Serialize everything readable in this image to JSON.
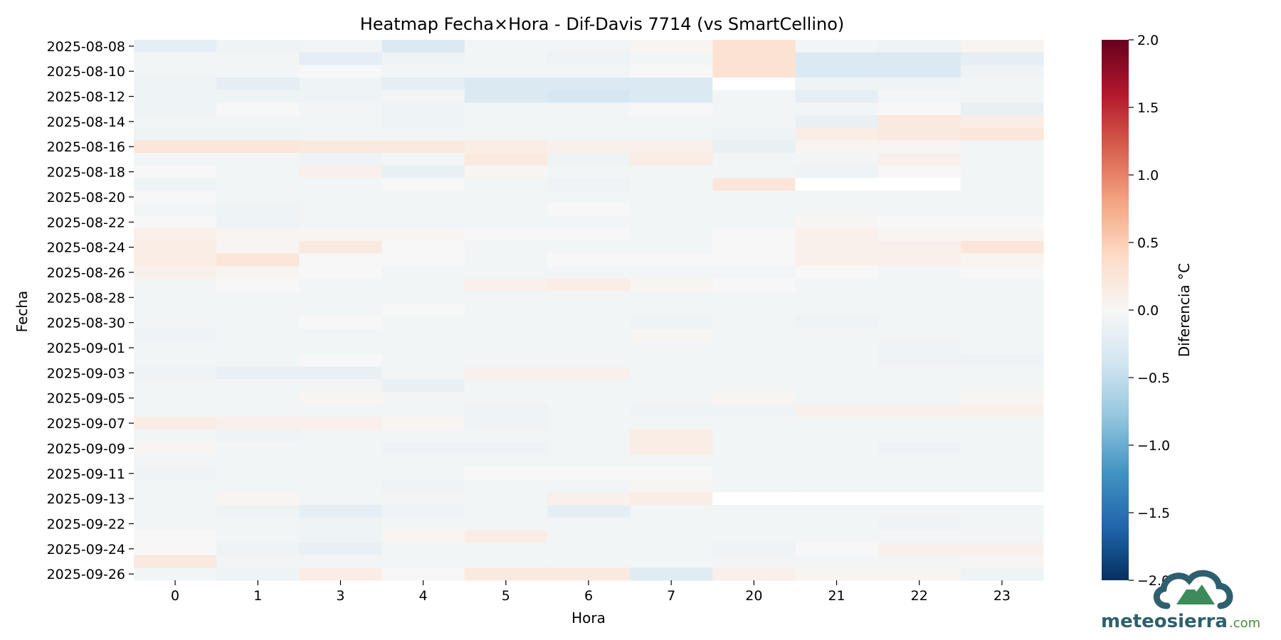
{
  "chart_data": {
    "type": "heatmap",
    "title": "Heatmap Fecha×Hora - Dif-Davis 7714 (vs SmartCellino)",
    "xlabel": "Hora",
    "ylabel": "Fecha",
    "x_categories": [
      "0",
      "1",
      "3",
      "4",
      "5",
      "6",
      "7",
      "20",
      "21",
      "22",
      "23"
    ],
    "y_rows": [
      "2025-08-08",
      "2025-08-09",
      "2025-08-10",
      "2025-08-11",
      "2025-08-12",
      "2025-08-13",
      "2025-08-14",
      "2025-08-15",
      "2025-08-16",
      "2025-08-17",
      "2025-08-18",
      "2025-08-19",
      "2025-08-20",
      "2025-08-21",
      "2025-08-22",
      "2025-08-23",
      "2025-08-24",
      "2025-08-25",
      "2025-08-26",
      "2025-08-27",
      "2025-08-28",
      "2025-08-29",
      "2025-08-30",
      "2025-08-31",
      "2025-09-01",
      "2025-09-02",
      "2025-09-03",
      "2025-09-04",
      "2025-09-05",
      "2025-09-06",
      "2025-09-07",
      "2025-09-08",
      "2025-09-09",
      "2025-09-10",
      "2025-09-11",
      "2025-09-12",
      "2025-09-13",
      "2025-09-21",
      "2025-09-22",
      "2025-09-23",
      "2025-09-24",
      "2025-09-25",
      "2025-09-26"
    ],
    "y_tick_labels": [
      "2025-08-08",
      "2025-08-10",
      "2025-08-12",
      "2025-08-14",
      "2025-08-16",
      "2025-08-18",
      "2025-08-20",
      "2025-08-22",
      "2025-08-24",
      "2025-08-26",
      "2025-08-28",
      "2025-08-30",
      "2025-09-01",
      "2025-09-03",
      "2025-09-05",
      "2025-09-07",
      "2025-09-09",
      "2025-09-11",
      "2025-09-13",
      "2025-09-22",
      "2025-09-24",
      "2025-09-26"
    ],
    "values": [
      [
        -0.2,
        -0.1,
        -0.05,
        -0.3,
        -0.05,
        -0.05,
        0.05,
        0.3,
        -0.05,
        -0.1,
        0.05
      ],
      [
        -0.05,
        -0.05,
        -0.2,
        -0.1,
        -0.05,
        -0.1,
        -0.05,
        0.3,
        -0.3,
        -0.3,
        -0.2
      ],
      [
        -0.05,
        -0.05,
        0.0,
        -0.05,
        -0.05,
        -0.05,
        0.0,
        0.3,
        -0.3,
        -0.3,
        -0.1
      ],
      [
        -0.1,
        -0.2,
        -0.1,
        -0.2,
        -0.3,
        -0.3,
        -0.3,
        null,
        -0.1,
        -0.1,
        -0.05
      ],
      [
        -0.1,
        -0.1,
        -0.1,
        -0.05,
        -0.3,
        -0.35,
        -0.3,
        -0.05,
        -0.2,
        -0.05,
        -0.05
      ],
      [
        -0.1,
        0.0,
        -0.05,
        -0.1,
        -0.05,
        -0.05,
        0.0,
        -0.05,
        -0.05,
        0.0,
        -0.15
      ],
      [
        -0.05,
        -0.05,
        -0.05,
        -0.1,
        -0.05,
        -0.05,
        -0.05,
        -0.05,
        -0.15,
        0.2,
        0.15
      ],
      [
        -0.1,
        -0.1,
        -0.05,
        -0.05,
        -0.05,
        -0.05,
        -0.05,
        -0.1,
        0.15,
        0.2,
        0.25
      ],
      [
        0.25,
        0.25,
        0.2,
        0.2,
        0.15,
        0.1,
        0.1,
        -0.15,
        0.05,
        0.05,
        -0.05
      ],
      [
        -0.05,
        -0.05,
        -0.1,
        -0.05,
        0.2,
        -0.1,
        0.15,
        -0.05,
        -0.05,
        0.1,
        -0.05
      ],
      [
        0.0,
        -0.05,
        0.1,
        -0.15,
        0.05,
        -0.05,
        -0.05,
        -0.05,
        -0.1,
        0.0,
        -0.05
      ],
      [
        -0.1,
        -0.05,
        -0.05,
        0.0,
        -0.05,
        -0.1,
        -0.05,
        0.25,
        null,
        null,
        -0.05
      ],
      [
        0.0,
        -0.05,
        -0.05,
        -0.05,
        -0.05,
        -0.05,
        -0.05,
        -0.05,
        -0.05,
        -0.05,
        -0.05
      ],
      [
        -0.05,
        -0.1,
        -0.05,
        -0.05,
        -0.05,
        0.0,
        -0.05,
        -0.05,
        -0.05,
        -0.05,
        -0.05
      ],
      [
        0.0,
        -0.1,
        -0.05,
        -0.05,
        -0.05,
        -0.05,
        -0.05,
        -0.05,
        0.05,
        0.0,
        0.0
      ],
      [
        0.1,
        0.05,
        0.05,
        0.05,
        0.0,
        0.0,
        -0.05,
        0.0,
        0.1,
        0.05,
        0.05
      ],
      [
        0.15,
        0.05,
        0.2,
        0.0,
        -0.05,
        -0.05,
        -0.05,
        0.0,
        0.1,
        0.1,
        0.25
      ],
      [
        0.15,
        0.25,
        0.0,
        0.0,
        -0.05,
        0.0,
        0.0,
        0.0,
        0.1,
        0.1,
        0.05
      ],
      [
        0.1,
        0.05,
        0.0,
        -0.05,
        -0.05,
        -0.05,
        -0.05,
        -0.05,
        0.0,
        -0.05,
        0.0
      ],
      [
        -0.05,
        0.0,
        -0.05,
        -0.05,
        0.1,
        0.15,
        0.05,
        0.0,
        -0.05,
        -0.05,
        -0.05
      ],
      [
        -0.05,
        -0.05,
        -0.05,
        -0.05,
        -0.05,
        -0.05,
        -0.05,
        -0.05,
        -0.05,
        -0.05,
        -0.05
      ],
      [
        -0.05,
        -0.05,
        -0.05,
        0.0,
        -0.05,
        -0.05,
        -0.05,
        -0.05,
        -0.05,
        -0.05,
        -0.05
      ],
      [
        -0.05,
        -0.05,
        0.0,
        -0.05,
        -0.05,
        -0.05,
        -0.1,
        -0.05,
        -0.1,
        -0.05,
        -0.05
      ],
      [
        -0.1,
        -0.05,
        -0.05,
        -0.05,
        -0.05,
        -0.05,
        0.05,
        -0.05,
        -0.05,
        -0.05,
        -0.05
      ],
      [
        -0.05,
        -0.05,
        -0.05,
        -0.05,
        -0.05,
        -0.05,
        -0.05,
        -0.05,
        -0.05,
        -0.1,
        -0.05
      ],
      [
        -0.05,
        -0.05,
        0.0,
        -0.05,
        -0.05,
        -0.05,
        -0.05,
        -0.05,
        -0.05,
        -0.1,
        -0.1
      ],
      [
        -0.1,
        -0.15,
        -0.15,
        -0.05,
        0.1,
        0.1,
        -0.05,
        -0.05,
        -0.05,
        -0.05,
        -0.05
      ],
      [
        -0.05,
        -0.05,
        -0.05,
        -0.15,
        -0.05,
        -0.05,
        -0.05,
        -0.05,
        -0.05,
        -0.05,
        -0.05
      ],
      [
        -0.05,
        -0.05,
        0.05,
        -0.05,
        -0.05,
        -0.05,
        -0.05,
        0.05,
        -0.05,
        -0.05,
        0.05
      ],
      [
        -0.05,
        -0.05,
        -0.05,
        -0.05,
        -0.1,
        -0.05,
        -0.1,
        -0.1,
        0.1,
        0.1,
        0.1
      ],
      [
        0.15,
        0.1,
        0.1,
        0.05,
        -0.1,
        -0.05,
        -0.05,
        -0.05,
        -0.05,
        -0.05,
        -0.05
      ],
      [
        -0.05,
        -0.1,
        -0.05,
        -0.05,
        -0.05,
        -0.05,
        0.15,
        -0.05,
        -0.05,
        -0.05,
        -0.05
      ],
      [
        0.05,
        -0.05,
        -0.05,
        -0.1,
        -0.1,
        -0.05,
        0.15,
        -0.05,
        -0.05,
        -0.1,
        -0.05
      ],
      [
        -0.05,
        -0.05,
        -0.05,
        -0.05,
        -0.05,
        -0.05,
        -0.05,
        -0.05,
        -0.05,
        -0.05,
        -0.05
      ],
      [
        -0.1,
        -0.05,
        -0.05,
        -0.05,
        0.0,
        0.0,
        0.0,
        -0.05,
        -0.05,
        -0.05,
        -0.05
      ],
      [
        -0.05,
        -0.05,
        -0.05,
        -0.1,
        -0.05,
        -0.05,
        0.05,
        -0.05,
        -0.05,
        -0.05,
        -0.05
      ],
      [
        -0.05,
        0.05,
        -0.05,
        -0.05,
        -0.05,
        0.1,
        0.15,
        null,
        null,
        null,
        null
      ],
      [
        -0.05,
        -0.1,
        -0.2,
        -0.1,
        -0.05,
        -0.2,
        -0.05,
        -0.05,
        -0.05,
        -0.05,
        -0.05
      ],
      [
        -0.05,
        -0.05,
        -0.1,
        -0.05,
        -0.05,
        -0.05,
        -0.05,
        -0.05,
        -0.05,
        -0.1,
        -0.05
      ],
      [
        0.0,
        -0.05,
        -0.1,
        0.05,
        0.15,
        -0.05,
        -0.05,
        -0.05,
        -0.05,
        -0.05,
        -0.05
      ],
      [
        0.0,
        -0.1,
        -0.15,
        -0.05,
        -0.05,
        -0.05,
        -0.05,
        -0.1,
        0.0,
        0.1,
        0.1
      ],
      [
        0.2,
        -0.05,
        -0.05,
        -0.05,
        -0.05,
        -0.05,
        -0.05,
        -0.05,
        -0.05,
        -0.05,
        0.05
      ],
      [
        -0.05,
        -0.1,
        0.15,
        0.0,
        0.2,
        0.2,
        -0.25,
        0.1,
        0.05,
        0.05,
        -0.1
      ]
    ],
    "colorbar": {
      "label": "Diferencia °C",
      "vmin": -2.0,
      "vmax": 2.0,
      "ticks": [
        "2.0",
        "1.5",
        "1.0",
        "0.5",
        "0.0",
        "−0.5",
        "−1.0",
        "−1.5",
        "−2.0"
      ],
      "tick_values": [
        2.0,
        1.5,
        1.0,
        0.5,
        0.0,
        -0.5,
        -1.0,
        -1.5,
        -2.0
      ],
      "colormap": "RdBu_r",
      "colors": [
        "#053061",
        "#2166ac",
        "#4393c3",
        "#92c5de",
        "#d1e5f0",
        "#f7f7f7",
        "#fddbc7",
        "#f4a582",
        "#d6604d",
        "#b2182b",
        "#67001f"
      ]
    }
  },
  "watermark": {
    "logo_text_main": "meteosierra",
    "logo_text_suffix": ".com",
    "logo_colors": {
      "text_main": "#2e5f6e",
      "text_suffix": "#4a8a3a",
      "cloud": "#2e5f6e",
      "mountain": "#3d8a5a"
    }
  }
}
